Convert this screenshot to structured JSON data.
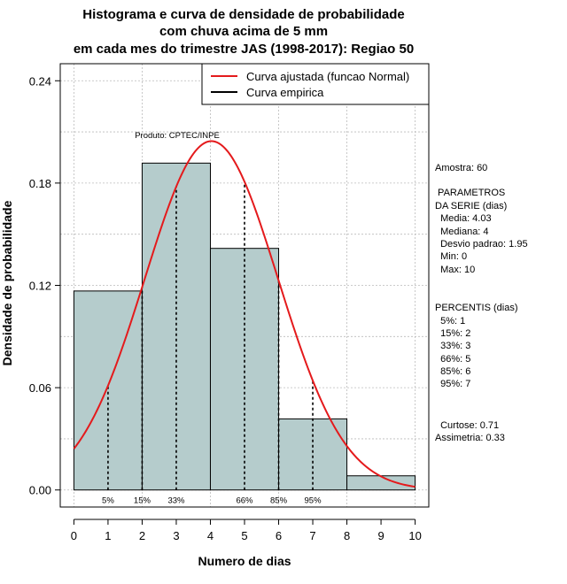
{
  "chart_data": {
    "type": "bar",
    "title_lines": [
      "Histograma e curva de densidade de probabilidade",
      "com chuva acima de 5 mm",
      "em cada mes do trimestre JAS (1998-2017): Regiao 50"
    ],
    "xlabel": "Numero de dias",
    "ylabel": "Densidade de probabilidade",
    "xlim": [
      -0.4,
      10.4
    ],
    "ylim": [
      -0.01,
      0.25
    ],
    "x_ticks": [
      0,
      1,
      2,
      3,
      4,
      5,
      6,
      7,
      8,
      9,
      10
    ],
    "x_tick_labels": [
      "0",
      "1",
      "2",
      "3",
      "4",
      "5",
      "6",
      "7",
      "8",
      "9",
      "10"
    ],
    "y_ticks": [
      0.0,
      0.06,
      0.12,
      0.18,
      0.24
    ],
    "y_tick_labels": [
      "0.00",
      "0.06",
      "0.12",
      "0.18",
      "0.24"
    ],
    "bins": [
      {
        "from": 0,
        "to": 2,
        "density": 0.1167
      },
      {
        "from": 2,
        "to": 4,
        "density": 0.1917
      },
      {
        "from": 4,
        "to": 6,
        "density": 0.1417
      },
      {
        "from": 6,
        "to": 8,
        "density": 0.0417
      },
      {
        "from": 8,
        "to": 10,
        "density": 0.0083
      }
    ],
    "bar_color": "#b5cccc",
    "curve_color": "#e41a1c",
    "curve": {
      "mean": 4.03,
      "sd": 1.95,
      "x_from": 0,
      "x_to": 10
    },
    "percentile_lines": [
      {
        "x": 1,
        "label": "5%"
      },
      {
        "x": 2,
        "label": "15%"
      },
      {
        "x": 3,
        "label": "33%"
      },
      {
        "x": 5,
        "label": "66%"
      },
      {
        "x": 6,
        "label": "85%"
      },
      {
        "x": 7,
        "label": "95%"
      }
    ],
    "legend": [
      {
        "label": "Curva ajustada (funcao Normal)",
        "color": "#e41a1c"
      },
      {
        "label": "Curva empirica",
        "color": "#000000"
      }
    ],
    "legend_position": "top-right",
    "annotation": "Produto: CPTEC/INPE",
    "grid": true
  },
  "side_panel": {
    "amostra": "Amostra: 60",
    "parametros_title": " PARAMETROS",
    "parametros_subtitle": "DA SERIE (dias)",
    "parametros": [
      "  Media: 4.03",
      "  Mediana: 4",
      "  Desvio padrao: 1.95",
      "  Min: 0",
      "  Max: 10"
    ],
    "percentis_title": "PERCENTIS (dias)",
    "percentis": [
      "  5%: 1",
      "  15%: 2",
      "  33%: 3",
      "  66%: 5",
      "  85%: 6",
      "  95%: 7"
    ],
    "curtose": "  Curtose: 0.71",
    "assimetria": "Assimetria: 0.33"
  }
}
